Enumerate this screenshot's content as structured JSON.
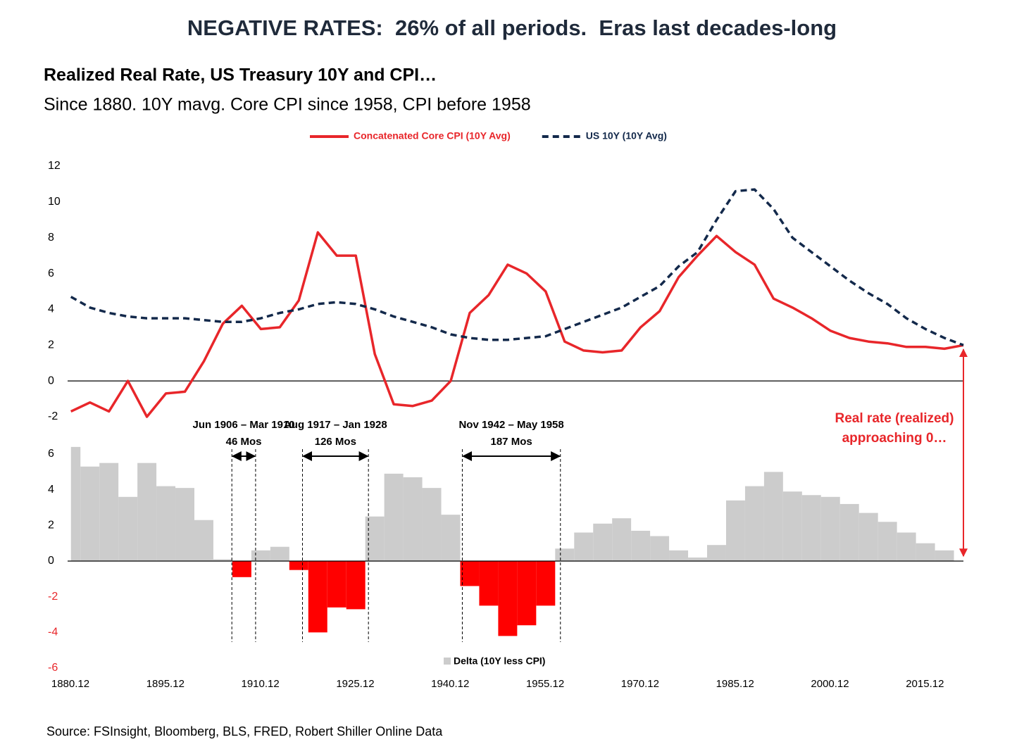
{
  "header": {
    "title": "NEGATIVE RATES:  26% of all periods.  Eras last decades-long"
  },
  "chart_data": [
    {
      "type": "line",
      "title": "Realized Real Rate, US Treasury 10Y and CPI…",
      "subtitle": "Since 1880. 10Y mavg. Core CPI since 1958, CPI before 1958",
      "x": [
        1881,
        1884,
        1887,
        1890,
        1893,
        1896,
        1899,
        1902,
        1905,
        1908,
        1911,
        1914,
        1917,
        1920,
        1923,
        1926,
        1929,
        1932,
        1935,
        1938,
        1941,
        1944,
        1947,
        1950,
        1953,
        1956,
        1959,
        1962,
        1965,
        1968,
        1971,
        1974,
        1977,
        1980,
        1983,
        1986,
        1989,
        1992,
        1995,
        1998,
        2001,
        2004,
        2007,
        2010,
        2013,
        2016,
        2019,
        2022
      ],
      "series": [
        {
          "name": "Concatenated Core CPI (10Y Avg)",
          "color": "#e8262a",
          "dashed": false,
          "values": [
            -1.7,
            -1.2,
            -1.7,
            0.0,
            -2.0,
            -0.7,
            -0.6,
            1.1,
            3.2,
            4.2,
            2.9,
            3.0,
            4.5,
            8.3,
            7.0,
            7.0,
            1.5,
            -1.3,
            -1.4,
            -1.1,
            0.0,
            3.8,
            4.8,
            6.5,
            6.0,
            5.0,
            2.2,
            1.7,
            1.6,
            1.7,
            3.0,
            3.9,
            5.8,
            7.0,
            8.1,
            7.2,
            6.5,
            4.6,
            4.1,
            3.5,
            2.8,
            2.4,
            2.2,
            2.1,
            1.9,
            1.9,
            1.8,
            2.0
          ]
        },
        {
          "name": "US 10Y (10Y Avg)",
          "color": "#13294b",
          "dashed": true,
          "values": [
            4.7,
            4.1,
            3.8,
            3.6,
            3.5,
            3.5,
            3.5,
            3.4,
            3.3,
            3.3,
            3.5,
            3.8,
            4.0,
            4.3,
            4.4,
            4.3,
            4.0,
            3.6,
            3.3,
            3.0,
            2.6,
            2.4,
            2.3,
            2.3,
            2.4,
            2.5,
            2.9,
            3.3,
            3.7,
            4.1,
            4.7,
            5.3,
            6.4,
            7.2,
            9.0,
            10.6,
            10.7,
            9.6,
            8.0,
            7.2,
            6.4,
            5.6,
            4.9,
            4.3,
            3.5,
            2.9,
            2.4,
            2.0
          ]
        }
      ],
      "xlim": [
        1880.917,
        2022.0
      ],
      "ylim": [
        -2,
        12
      ],
      "yticks": [
        -2,
        0,
        2,
        4,
        6,
        8,
        10,
        12
      ],
      "annotation": [
        "Real rate (realized)",
        "approaching 0…"
      ],
      "annotation_color": "#e8262a"
    },
    {
      "type": "bar",
      "x": [
        1881,
        1884,
        1887,
        1890,
        1893,
        1896,
        1899,
        1902,
        1905,
        1908,
        1911,
        1914,
        1917,
        1920,
        1923,
        1926,
        1929,
        1932,
        1935,
        1938,
        1941,
        1944,
        1947,
        1950,
        1953,
        1956,
        1959,
        1962,
        1965,
        1968,
        1971,
        1974,
        1977,
        1980,
        1983,
        1986,
        1989,
        1992,
        1995,
        1998,
        2001,
        2004,
        2007,
        2010,
        2013,
        2016,
        2019,
        2022
      ],
      "series": [
        {
          "name": "Delta (10Y less CPI)",
          "color": "#cccccc",
          "negative_color": "#ff0000",
          "values": [
            6.4,
            5.3,
            5.5,
            3.6,
            5.5,
            4.2,
            4.1,
            2.3,
            0.1,
            -0.9,
            0.6,
            0.8,
            -0.5,
            -4.0,
            -2.6,
            -2.7,
            2.5,
            4.9,
            4.7,
            4.1,
            2.6,
            -1.4,
            -2.5,
            -4.2,
            -3.6,
            -2.5,
            0.7,
            1.6,
            2.1,
            2.4,
            1.7,
            1.4,
            0.6,
            0.2,
            0.9,
            3.4,
            4.2,
            5.0,
            3.9,
            3.7,
            3.6,
            3.2,
            2.7,
            2.2,
            1.6,
            1.0,
            0.6,
            0.0
          ]
        }
      ],
      "xlim": [
        1880.917,
        2022.0
      ],
      "xticks": [
        {
          "value": 1880.917,
          "label": "1880.12"
        },
        {
          "value": 1895.917,
          "label": "1895.12"
        },
        {
          "value": 1910.917,
          "label": "1910.12"
        },
        {
          "value": 1925.917,
          "label": "1925.12"
        },
        {
          "value": 1940.917,
          "label": "1940.12"
        },
        {
          "value": 1955.917,
          "label": "1955.12"
        },
        {
          "value": 1970.917,
          "label": "1970.12"
        },
        {
          "value": 1985.917,
          "label": "1985.12"
        },
        {
          "value": 2000.917,
          "label": "2000.12"
        },
        {
          "value": 2015.917,
          "label": "2015.12"
        }
      ],
      "ylim": [
        -6,
        6
      ],
      "yticks": [
        -6,
        -4,
        -2,
        0,
        2,
        4,
        6
      ],
      "negative_tick_color": "#e8262a",
      "eras": [
        {
          "label": "Jun 1906 – Mar 1910",
          "duration": "46 Mos",
          "start": 1906.42,
          "end": 1910.17
        },
        {
          "label": "Aug 1917 – Jan 1928",
          "duration": "126 Mos",
          "start": 1917.58,
          "end": 1928.0
        },
        {
          "label": "Nov 1942 – May 1958",
          "duration": "187 Mos",
          "start": 1942.83,
          "end": 1958.33
        }
      ]
    }
  ],
  "source": "Source: FSInsight, Bloomberg, BLS, FRED, Robert Shiller Online Data"
}
